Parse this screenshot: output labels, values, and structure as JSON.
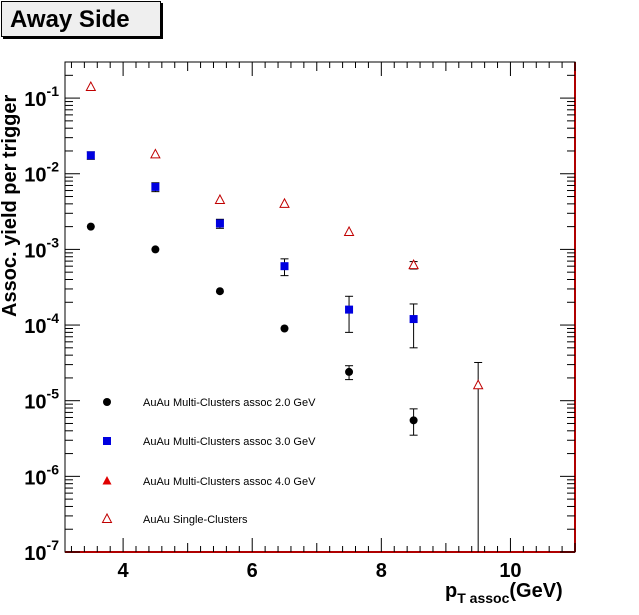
{
  "chart_data": {
    "type": "scatter",
    "title": "Away Side",
    "xlabel": "p_T assoc(GeV)",
    "xlabel_main": "p",
    "xlabel_sub": "T assoc",
    "xlabel_unit": "(GeV)",
    "ylabel": "Assoc. yield per trigger",
    "xlim": [
      3.1,
      11.0
    ],
    "ylim": [
      1e-07,
      0.3
    ],
    "yscale": "log",
    "x_ticks": [
      "4",
      "6",
      "8",
      "10"
    ],
    "y_ticks": [
      {
        "base": "10",
        "exp": "-7"
      },
      {
        "base": "10",
        "exp": "-6"
      },
      {
        "base": "10",
        "exp": "-5"
      },
      {
        "base": "10",
        "exp": "-4"
      },
      {
        "base": "10",
        "exp": "-3"
      },
      {
        "base": "10",
        "exp": "-2"
      },
      {
        "base": "10",
        "exp": "-1"
      }
    ],
    "grid": false,
    "legend_position": "bottom-left",
    "series": [
      {
        "name": "AuAu Multi-Clusters assoc 2.0 GeV",
        "marker": "circle",
        "color": "#000000",
        "points": [
          {
            "x": 3.5,
            "y": 0.002
          },
          {
            "x": 4.5,
            "y": 0.001
          },
          {
            "x": 5.5,
            "y": 0.00028
          },
          {
            "x": 6.5,
            "y": 9e-05
          },
          {
            "x": 7.5,
            "y": 2.4e-05,
            "err_lo": 1.9e-05,
            "err_hi": 2.9e-05
          },
          {
            "x": 8.5,
            "y": 5.5e-06,
            "err_lo": 3.5e-06,
            "err_hi": 7.8e-06
          }
        ]
      },
      {
        "name": "AuAu Multi-Clusters assoc 3.0 GeV",
        "marker": "square",
        "color": "#0000e0",
        "points": [
          {
            "x": 3.5,
            "y": 0.0175,
            "err_lo": 0.0155,
            "err_hi": 0.0195
          },
          {
            "x": 4.5,
            "y": 0.0067,
            "err_lo": 0.0058,
            "err_hi": 0.0076
          },
          {
            "x": 5.5,
            "y": 0.0022,
            "err_lo": 0.0019,
            "err_hi": 0.0025
          },
          {
            "x": 6.5,
            "y": 0.0006,
            "err_lo": 0.00045,
            "err_hi": 0.00075
          },
          {
            "x": 7.5,
            "y": 0.00016,
            "err_lo": 8e-05,
            "err_hi": 0.00024
          },
          {
            "x": 8.5,
            "y": 0.00012,
            "err_lo": 5e-05,
            "err_hi": 0.00019
          }
        ]
      },
      {
        "name": "AuAu Multi-Clusters assoc 4.0 GeV",
        "marker": "triangle-filled",
        "color": "#e00000",
        "points": []
      },
      {
        "name": "AuAu Single-Clusters",
        "marker": "triangle-open",
        "color": "#c00000",
        "points": [
          {
            "x": 3.5,
            "y": 0.14
          },
          {
            "x": 4.5,
            "y": 0.018
          },
          {
            "x": 5.5,
            "y": 0.0045
          },
          {
            "x": 6.5,
            "y": 0.004
          },
          {
            "x": 7.5,
            "y": 0.0017
          },
          {
            "x": 8.5,
            "y": 0.00062,
            "err_lo": 0.00055,
            "err_hi": 0.00069
          },
          {
            "x": 9.5,
            "y": 1.6e-05,
            "err_lo": 1e-07,
            "err_hi": 3.2e-05
          }
        ]
      }
    ]
  }
}
